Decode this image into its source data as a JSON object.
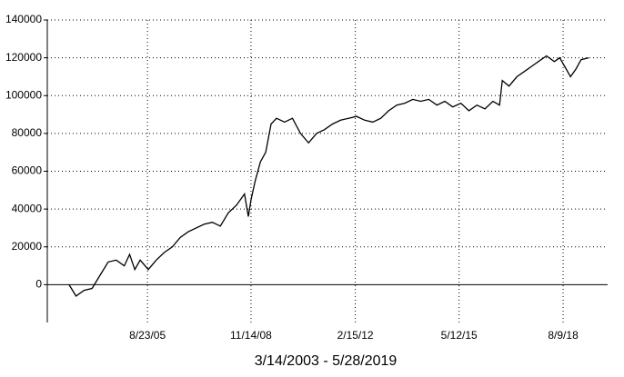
{
  "chart_data": {
    "type": "line",
    "x_label": "3/14/2003 - 5/28/2019",
    "x": [
      "3/14/03",
      "6/1/03",
      "9/1/03",
      "12/1/03",
      "3/1/04",
      "6/1/04",
      "9/1/04",
      "12/1/04",
      "2/1/05",
      "4/1/05",
      "6/1/05",
      "9/1/05",
      "12/1/05",
      "3/1/06",
      "6/1/06",
      "9/1/06",
      "12/1/06",
      "3/1/07",
      "6/1/07",
      "9/1/07",
      "12/1/07",
      "3/1/08",
      "6/1/08",
      "9/1/08",
      "10/15/08",
      "11/15/08",
      "1/1/09",
      "3/1/09",
      "5/1/09",
      "7/1/09",
      "9/1/09",
      "12/1/09",
      "3/1/10",
      "6/1/10",
      "9/1/10",
      "12/1/10",
      "3/1/11",
      "6/1/11",
      "9/1/11",
      "12/1/11",
      "3/1/12",
      "6/1/12",
      "9/1/12",
      "12/1/12",
      "3/1/13",
      "6/1/13",
      "9/1/13",
      "12/1/13",
      "3/1/14",
      "6/1/14",
      "9/1/14",
      "12/1/14",
      "3/1/15",
      "6/1/15",
      "9/1/15",
      "12/1/15",
      "3/1/16",
      "6/1/16",
      "8/15/16",
      "9/15/16",
      "12/1/16",
      "3/1/17",
      "6/1/17",
      "9/1/17",
      "12/1/17",
      "2/1/18",
      "5/1/18",
      "7/1/18",
      "9/1/18",
      "11/1/18",
      "1/1/19",
      "3/1/19",
      "5/28/19"
    ],
    "series": [
      {
        "color": "#000000",
        "values": [
          0,
          -6000,
          -3000,
          -2000,
          5000,
          12000,
          13000,
          10000,
          16000,
          8000,
          13000,
          8000,
          13000,
          17000,
          20000,
          25000,
          28000,
          30000,
          32000,
          33000,
          31000,
          38000,
          42000,
          48000,
          36000,
          45000,
          55000,
          65000,
          70000,
          85000,
          88000,
          86000,
          88000,
          80000,
          75000,
          80000,
          82000,
          85000,
          87000,
          88000,
          89000,
          87000,
          86000,
          88000,
          92000,
          95000,
          96000,
          98000,
          97000,
          98000,
          95000,
          97000,
          94000,
          96000,
          92000,
          95000,
          93000,
          97000,
          95000,
          108000,
          105000,
          110000,
          113000,
          116000,
          119000,
          121000,
          118000,
          120000,
          115000,
          110000,
          114000,
          119000,
          120000
        ]
      }
    ],
    "xlim": [
      "7/9/02",
      "12/29/19"
    ],
    "xticks": [
      "8/23/05",
      "11/14/08",
      "2/15/12",
      "5/12/15",
      "8/9/18"
    ],
    "ylim": [
      -20000,
      140000
    ],
    "yticks": [
      0,
      20000,
      40000,
      60000,
      80000,
      100000,
      120000,
      140000
    ],
    "grid": true
  }
}
